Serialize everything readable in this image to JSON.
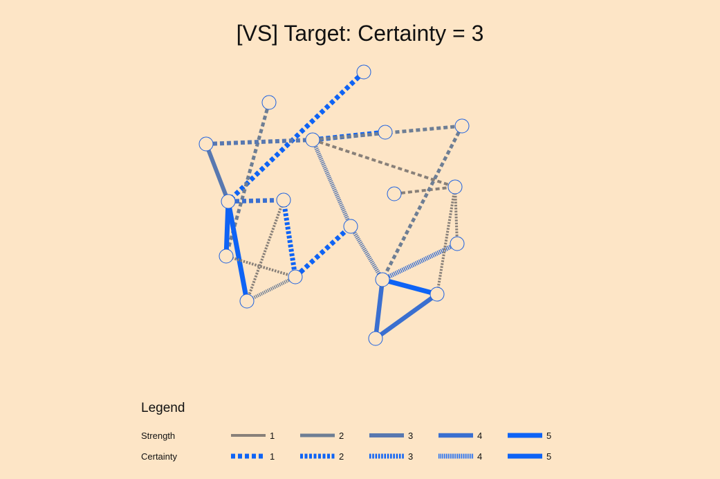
{
  "title": "[VS] Target: Certainty = 3",
  "colors": {
    "background": "#fde5c6",
    "node_stroke": "#1a5fe0",
    "node_fill": "#fde5c6",
    "level_colors": [
      "#888079",
      "#6e7e94",
      "#5878b0",
      "#3a6fd0",
      "#0e63f5"
    ]
  },
  "legend": {
    "title": "Legend",
    "strength_label": "Strength",
    "certainty_label": "Certainty",
    "levels": [
      "1",
      "2",
      "3",
      "4",
      "5"
    ]
  },
  "graph": {
    "nodes": [
      {
        "id": "n1"
      },
      {
        "id": "n2"
      },
      {
        "id": "n3"
      },
      {
        "id": "n4"
      },
      {
        "id": "n5"
      },
      {
        "id": "n6"
      },
      {
        "id": "n7"
      },
      {
        "id": "n8"
      },
      {
        "id": "n9"
      },
      {
        "id": "n10"
      },
      {
        "id": "n11"
      },
      {
        "id": "n12"
      },
      {
        "id": "n13"
      },
      {
        "id": "n14"
      },
      {
        "id": "n15"
      },
      {
        "id": "n16"
      },
      {
        "id": "n17"
      },
      {
        "id": "n18"
      }
    ],
    "edges": [
      {
        "from": "n1",
        "to": "n4",
        "strength": 5,
        "certainty": 1
      },
      {
        "from": "n2",
        "to": "n5",
        "strength": 2,
        "certainty": 1
      },
      {
        "from": "n3",
        "to": "n4",
        "strength": 3,
        "certainty": 5
      },
      {
        "from": "n3",
        "to": "n6",
        "strength": 3,
        "certainty": 1
      },
      {
        "from": "n4",
        "to": "n5",
        "strength": 5,
        "certainty": 5
      },
      {
        "from": "n4",
        "to": "n7",
        "strength": 4,
        "certainty": 1
      },
      {
        "from": "n4",
        "to": "n9",
        "strength": 5,
        "certainty": 5
      },
      {
        "from": "n5",
        "to": "n8",
        "strength": 1,
        "certainty": 3
      },
      {
        "from": "n7",
        "to": "n8",
        "strength": 5,
        "certainty": 2
      },
      {
        "from": "n7",
        "to": "n9",
        "strength": 1,
        "certainty": 3
      },
      {
        "from": "n8",
        "to": "n9",
        "strength": 2,
        "certainty": 4
      },
      {
        "from": "n8",
        "to": "n10",
        "strength": 5,
        "certainty": 1
      },
      {
        "from": "n11",
        "to": "n6",
        "strength": 5,
        "certainty": 1
      },
      {
        "from": "n6",
        "to": "n10",
        "strength": 3,
        "certainty": 4
      },
      {
        "from": "n6",
        "to": "n12",
        "strength": 2,
        "certainty": 1
      },
      {
        "from": "n6",
        "to": "n14",
        "strength": 1,
        "certainty": 1
      },
      {
        "from": "n13",
        "to": "n14",
        "strength": 1,
        "certainty": 1
      },
      {
        "from": "n14",
        "to": "n15",
        "strength": 1,
        "certainty": 3
      },
      {
        "from": "n12",
        "to": "n16",
        "strength": 2,
        "certainty": 1
      },
      {
        "from": "n10",
        "to": "n16",
        "strength": 3,
        "certainty": 4
      },
      {
        "from": "n15",
        "to": "n16",
        "strength": 4,
        "certainty": 4
      },
      {
        "from": "n14",
        "to": "n17",
        "strength": 1,
        "certainty": 3
      },
      {
        "from": "n16",
        "to": "n17",
        "strength": 5,
        "certainty": 5
      },
      {
        "from": "n16",
        "to": "n18",
        "strength": 4,
        "certainty": 5
      },
      {
        "from": "n17",
        "to": "n18",
        "strength": 4,
        "certainty": 5
      }
    ]
  }
}
